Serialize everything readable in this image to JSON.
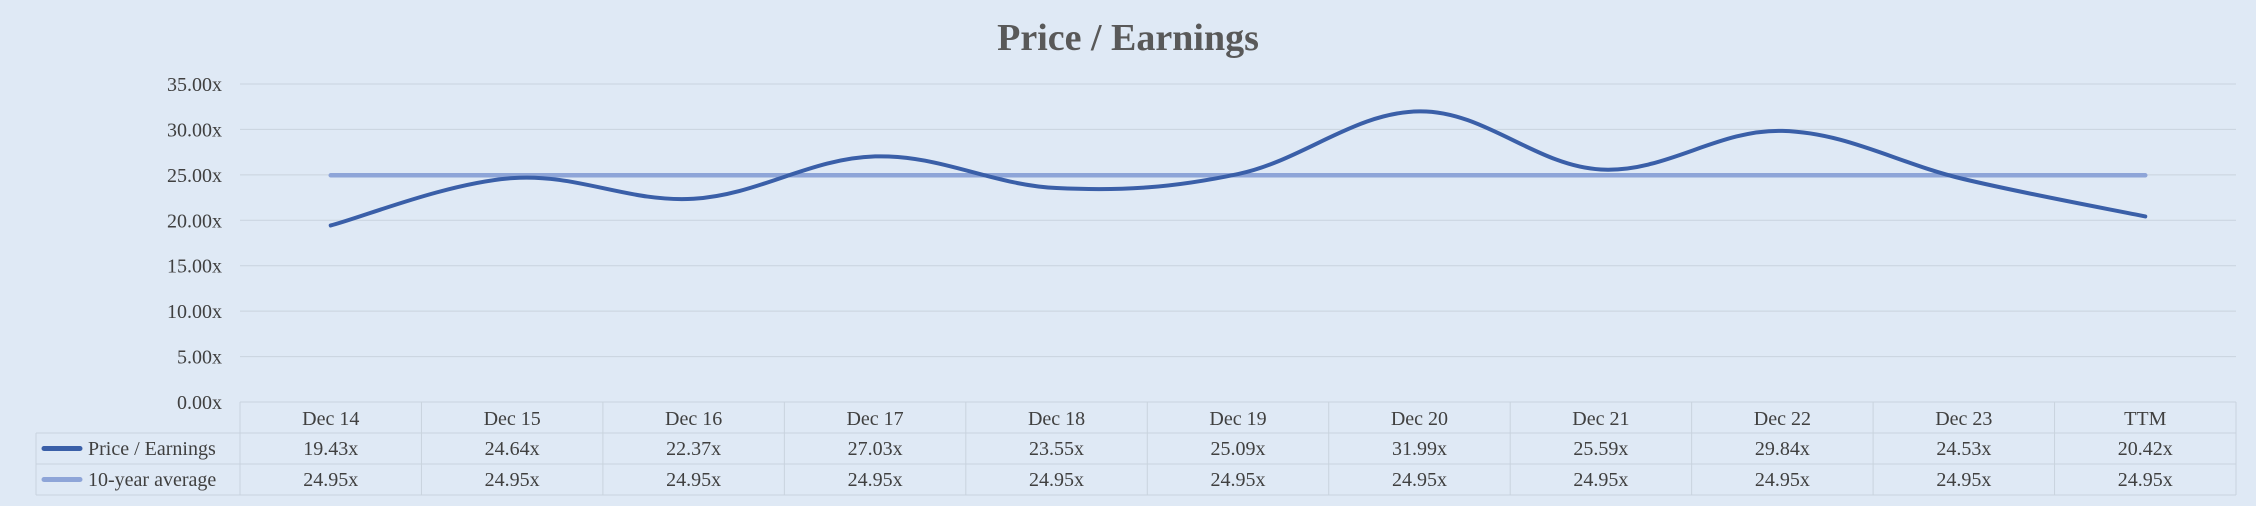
{
  "chart_data": {
    "type": "line",
    "title": "Price / Earnings",
    "categories": [
      "Dec 14",
      "Dec 15",
      "Dec 16",
      "Dec 17",
      "Dec 18",
      "Dec 19",
      "Dec 20",
      "Dec 21",
      "Dec 22",
      "Dec 23",
      "TTM"
    ],
    "series": [
      {
        "name": "Price / Earnings",
        "values": [
          19.43,
          24.64,
          22.37,
          27.03,
          23.55,
          25.09,
          31.99,
          25.59,
          29.84,
          24.53,
          20.42
        ],
        "labels": [
          "19.43x",
          "24.64x",
          "22.37x",
          "27.03x",
          "23.55x",
          "25.09x",
          "31.99x",
          "25.59x",
          "29.84x",
          "24.53x",
          "20.42x"
        ],
        "color": "#3a5fa8",
        "smooth": true
      },
      {
        "name": "10-year average",
        "values": [
          24.95,
          24.95,
          24.95,
          24.95,
          24.95,
          24.95,
          24.95,
          24.95,
          24.95,
          24.95,
          24.95
        ],
        "labels": [
          "24.95x",
          "24.95x",
          "24.95x",
          "24.95x",
          "24.95x",
          "24.95x",
          "24.95x",
          "24.95x",
          "24.95x",
          "24.95x",
          "24.95x"
        ],
        "color": "#8ea5d8",
        "smooth": false
      }
    ],
    "ylim": [
      0,
      35
    ],
    "ytick_values": [
      0,
      5,
      10,
      15,
      20,
      25,
      30,
      35
    ],
    "ytick_labels": [
      "0.00x",
      "5.00x",
      "10.00x",
      "15.00x",
      "20.00x",
      "25.00x",
      "30.00x",
      "35.00x"
    ],
    "grid": true,
    "legend": "data-table"
  }
}
